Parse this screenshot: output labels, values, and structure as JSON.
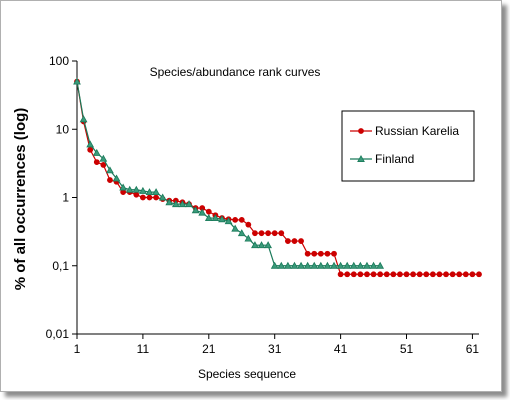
{
  "chart_data": {
    "type": "line",
    "title": "Species/abundance rank curves",
    "xlabel": "Species sequence",
    "ylabel": "% of all occurrences (log)",
    "yscale": "log",
    "xlim": [
      1,
      62
    ],
    "ylim": [
      0.01,
      100
    ],
    "x_ticks": [
      1,
      11,
      21,
      31,
      41,
      51,
      61
    ],
    "x_tick_labels": [
      "1",
      "11",
      "21",
      "31",
      "41",
      "51",
      "61"
    ],
    "y_ticks": [
      100,
      10,
      1,
      0.1,
      0.01
    ],
    "y_tick_labels": [
      "100",
      "10",
      "1",
      "0,1",
      "0,01"
    ],
    "grid": false,
    "legend_position": "right",
    "series": [
      {
        "name": "Russian Karelia",
        "color": "#cc0000",
        "marker": "circle",
        "x": [
          1,
          2,
          3,
          4,
          5,
          6,
          7,
          8,
          9,
          10,
          11,
          12,
          13,
          14,
          15,
          16,
          17,
          18,
          19,
          20,
          21,
          22,
          23,
          24,
          25,
          26,
          27,
          28,
          29,
          30,
          31,
          32,
          33,
          34,
          35,
          36,
          37,
          38,
          39,
          40,
          41,
          42,
          43,
          44,
          45,
          46,
          47,
          48,
          49,
          50,
          51,
          52,
          53,
          54,
          55,
          56,
          57,
          58,
          59,
          60,
          61,
          62
        ],
        "y": [
          50,
          13,
          5,
          3.3,
          3,
          1.8,
          1.7,
          1.2,
          1.2,
          1.1,
          1.0,
          1.0,
          1.0,
          0.95,
          0.9,
          0.9,
          0.85,
          0.8,
          0.7,
          0.7,
          0.62,
          0.55,
          0.5,
          0.48,
          0.47,
          0.47,
          0.4,
          0.3,
          0.3,
          0.3,
          0.3,
          0.3,
          0.23,
          0.23,
          0.23,
          0.15,
          0.15,
          0.15,
          0.15,
          0.15,
          0.075,
          0.075,
          0.075,
          0.075,
          0.075,
          0.075,
          0.075,
          0.075,
          0.075,
          0.075,
          0.075,
          0.075,
          0.075,
          0.075,
          0.075,
          0.075,
          0.075,
          0.075,
          0.075,
          0.075,
          0.075,
          0.075
        ]
      },
      {
        "name": "Finland",
        "color": "#1a7a5a",
        "marker": "triangle",
        "x": [
          1,
          2,
          3,
          4,
          5,
          6,
          7,
          8,
          9,
          10,
          11,
          12,
          13,
          14,
          15,
          16,
          17,
          18,
          19,
          20,
          21,
          22,
          23,
          24,
          25,
          26,
          27,
          28,
          29,
          30,
          31,
          32,
          33,
          34,
          35,
          36,
          37,
          38,
          39,
          40,
          41,
          42,
          43,
          44,
          45,
          46,
          47
        ],
        "y": [
          50,
          14,
          6,
          4.5,
          3.7,
          2.5,
          1.9,
          1.4,
          1.3,
          1.3,
          1.25,
          1.2,
          1.2,
          1.0,
          0.85,
          0.8,
          0.8,
          0.8,
          0.65,
          0.6,
          0.5,
          0.5,
          0.48,
          0.45,
          0.35,
          0.3,
          0.25,
          0.2,
          0.2,
          0.2,
          0.1,
          0.1,
          0.1,
          0.1,
          0.1,
          0.1,
          0.1,
          0.1,
          0.1,
          0.1,
          0.1,
          0.1,
          0.1,
          0.1,
          0.1,
          0.1,
          0.1
        ]
      }
    ]
  }
}
